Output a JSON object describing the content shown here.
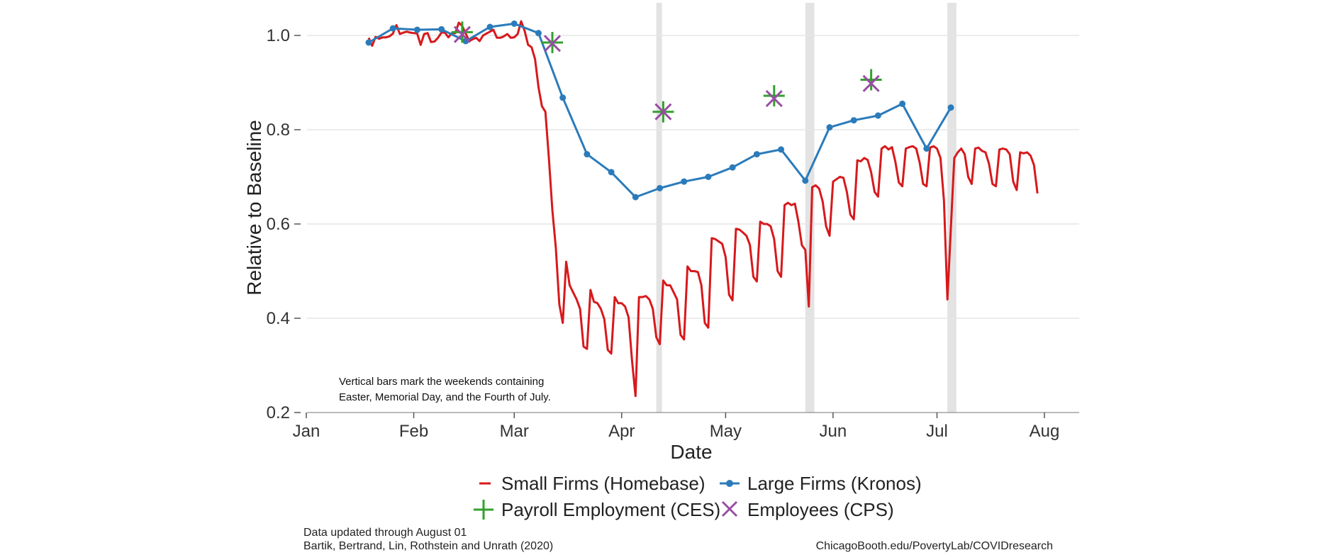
{
  "chart_data": {
    "type": "line",
    "xlabel": "Date",
    "ylabel": "Relative to Baseline",
    "x_domain": [
      1,
      214
    ],
    "ylim": [
      0.2,
      1.05
    ],
    "x_ticks": [
      {
        "day": 1,
        "label": "Jan"
      },
      {
        "day": 32,
        "label": "Feb"
      },
      {
        "day": 61,
        "label": "Mar"
      },
      {
        "day": 92,
        "label": "Apr"
      },
      {
        "day": 122,
        "label": "May"
      },
      {
        "day": 153,
        "label": "Jun"
      },
      {
        "day": 183,
        "label": "Jul"
      },
      {
        "day": 214,
        "label": "Aug"
      }
    ],
    "y_ticks": [
      {
        "value": 0.2,
        "label": "0.2"
      },
      {
        "value": 0.4,
        "label": "0.4"
      },
      {
        "value": 0.6,
        "label": "0.6"
      },
      {
        "value": 0.8,
        "label": "0.8"
      },
      {
        "value": 1.0,
        "label": "1.0"
      }
    ],
    "grid": true,
    "holiday_bars": [
      {
        "start_day": 102,
        "end_day": 103.6,
        "label": "Easter"
      },
      {
        "start_day": 145,
        "end_day": 147.6,
        "label": "Memorial Day"
      },
      {
        "start_day": 186,
        "end_day": 188.6,
        "label": "Fourth of July"
      }
    ],
    "note_lines": [
      "Vertical bars mark the weekends containing",
      "Easter, Memorial Day, and the Fourth of July."
    ],
    "series": [
      {
        "name": "Small Firms (Homebase)",
        "style": "line",
        "color": "#d7191c",
        "points": [
          [
            19,
            0.995
          ],
          [
            20,
            0.978
          ],
          [
            21,
            0.997
          ],
          [
            22,
            0.993
          ],
          [
            23,
            0.996
          ],
          [
            24,
            0.996
          ],
          [
            25,
            0.998
          ],
          [
            26,
            1.004
          ],
          [
            27,
            1.022
          ],
          [
            28,
            1.003
          ],
          [
            29,
            1.006
          ],
          [
            30,
            1.008
          ],
          [
            31,
            1.006
          ],
          [
            32,
            1.005
          ],
          [
            33,
            1.004
          ],
          [
            34,
            0.98
          ],
          [
            35,
            1.003
          ],
          [
            36,
            1.005
          ],
          [
            37,
            0.986
          ],
          [
            38,
            0.987
          ],
          [
            39,
            0.995
          ],
          [
            40,
            1.006
          ],
          [
            41,
            1.006
          ],
          [
            42,
            0.996
          ],
          [
            43,
            1.005
          ],
          [
            44,
            1.005
          ],
          [
            45,
            1.027
          ],
          [
            46,
            1.02
          ],
          [
            47,
            1.004
          ],
          [
            48,
            0.988
          ],
          [
            49,
            0.992
          ],
          [
            50,
            0.995
          ],
          [
            51,
            0.988
          ],
          [
            52,
            1.0
          ],
          [
            53,
            1.004
          ],
          [
            54,
            1.008
          ],
          [
            55,
            1.012
          ],
          [
            56,
            0.995
          ],
          [
            57,
            0.995
          ],
          [
            58,
            0.998
          ],
          [
            59,
            1.003
          ],
          [
            60,
            0.995
          ],
          [
            61,
            0.996
          ],
          [
            62,
            1.003
          ],
          [
            63,
            1.03
          ],
          [
            64,
            1.01
          ],
          [
            65,
            0.98
          ],
          [
            66,
            0.975
          ],
          [
            67,
            0.95
          ],
          [
            68,
            0.89
          ],
          [
            69,
            0.85
          ],
          [
            70,
            0.838
          ],
          [
            71,
            0.74
          ],
          [
            72,
            0.63
          ],
          [
            73,
            0.55
          ],
          [
            74,
            0.43
          ],
          [
            75,
            0.39
          ],
          [
            76,
            0.52
          ],
          [
            77,
            0.47
          ],
          [
            78,
            0.455
          ],
          [
            79,
            0.44
          ],
          [
            80,
            0.42
          ],
          [
            81,
            0.34
          ],
          [
            82,
            0.335
          ],
          [
            83,
            0.46
          ],
          [
            84,
            0.435
          ],
          [
            85,
            0.432
          ],
          [
            86,
            0.42
          ],
          [
            87,
            0.398
          ],
          [
            88,
            0.333
          ],
          [
            89,
            0.325
          ],
          [
            90,
            0.445
          ],
          [
            91,
            0.432
          ],
          [
            92,
            0.432
          ],
          [
            93,
            0.425
          ],
          [
            94,
            0.402
          ],
          [
            95,
            0.31
          ],
          [
            96,
            0.235
          ],
          [
            97,
            0.445
          ],
          [
            98,
            0.445
          ],
          [
            99,
            0.447
          ],
          [
            100,
            0.44
          ],
          [
            101,
            0.42
          ],
          [
            102,
            0.36
          ],
          [
            103,
            0.345
          ],
          [
            104,
            0.48
          ],
          [
            105,
            0.47
          ],
          [
            106,
            0.47
          ],
          [
            107,
            0.455
          ],
          [
            108,
            0.44
          ],
          [
            109,
            0.365
          ],
          [
            110,
            0.355
          ],
          [
            111,
            0.51
          ],
          [
            112,
            0.5
          ],
          [
            113,
            0.5
          ],
          [
            114,
            0.498
          ],
          [
            115,
            0.47
          ],
          [
            116,
            0.39
          ],
          [
            117,
            0.38
          ],
          [
            118,
            0.57
          ],
          [
            119,
            0.568
          ],
          [
            120,
            0.563
          ],
          [
            121,
            0.558
          ],
          [
            122,
            0.53
          ],
          [
            123,
            0.45
          ],
          [
            124,
            0.438
          ],
          [
            125,
            0.59
          ],
          [
            126,
            0.588
          ],
          [
            127,
            0.582
          ],
          [
            128,
            0.575
          ],
          [
            129,
            0.556
          ],
          [
            130,
            0.488
          ],
          [
            131,
            0.478
          ],
          [
            132,
            0.605
          ],
          [
            133,
            0.6
          ],
          [
            134,
            0.6
          ],
          [
            135,
            0.595
          ],
          [
            136,
            0.568
          ],
          [
            137,
            0.5
          ],
          [
            138,
            0.488
          ],
          [
            139,
            0.64
          ],
          [
            140,
            0.645
          ],
          [
            141,
            0.64
          ],
          [
            142,
            0.643
          ],
          [
            143,
            0.605
          ],
          [
            144,
            0.555
          ],
          [
            145,
            0.545
          ],
          [
            146,
            0.425
          ],
          [
            147,
            0.678
          ],
          [
            148,
            0.682
          ],
          [
            149,
            0.675
          ],
          [
            150,
            0.648
          ],
          [
            151,
            0.595
          ],
          [
            152,
            0.575
          ],
          [
            153,
            0.69
          ],
          [
            154,
            0.695
          ],
          [
            155,
            0.7
          ],
          [
            156,
            0.698
          ],
          [
            157,
            0.668
          ],
          [
            158,
            0.62
          ],
          [
            159,
            0.61
          ],
          [
            160,
            0.735
          ],
          [
            161,
            0.733
          ],
          [
            162,
            0.74
          ],
          [
            163,
            0.736
          ],
          [
            164,
            0.71
          ],
          [
            165,
            0.668
          ],
          [
            166,
            0.658
          ],
          [
            167,
            0.76
          ],
          [
            168,
            0.765
          ],
          [
            169,
            0.758
          ],
          [
            170,
            0.763
          ],
          [
            171,
            0.732
          ],
          [
            172,
            0.688
          ],
          [
            173,
            0.68
          ],
          [
            174,
            0.76
          ],
          [
            175,
            0.763
          ],
          [
            176,
            0.765
          ],
          [
            177,
            0.76
          ],
          [
            178,
            0.73
          ],
          [
            179,
            0.685
          ],
          [
            180,
            0.68
          ],
          [
            181,
            0.762
          ],
          [
            182,
            0.765
          ],
          [
            183,
            0.76
          ],
          [
            184,
            0.74
          ],
          [
            185,
            0.65
          ],
          [
            186,
            0.44
          ],
          [
            187,
            0.59
          ],
          [
            188,
            0.74
          ],
          [
            189,
            0.752
          ],
          [
            190,
            0.76
          ],
          [
            191,
            0.748
          ],
          [
            192,
            0.7
          ],
          [
            193,
            0.685
          ],
          [
            194,
            0.76
          ],
          [
            195,
            0.762
          ],
          [
            196,
            0.755
          ],
          [
            197,
            0.752
          ],
          [
            198,
            0.728
          ],
          [
            199,
            0.685
          ],
          [
            200,
            0.68
          ],
          [
            201,
            0.758
          ],
          [
            202,
            0.76
          ],
          [
            203,
            0.758
          ],
          [
            204,
            0.748
          ],
          [
            205,
            0.69
          ],
          [
            206,
            0.672
          ],
          [
            207,
            0.752
          ],
          [
            208,
            0.75
          ],
          [
            209,
            0.752
          ],
          [
            210,
            0.745
          ],
          [
            211,
            0.725
          ],
          [
            212,
            0.665
          ]
        ]
      },
      {
        "name": "Large Firms (Kronos)",
        "style": "line-points",
        "color": "#2b7bba",
        "points": [
          [
            19,
            0.985
          ],
          [
            26,
            1.015
          ],
          [
            33,
            1.012
          ],
          [
            40,
            1.013
          ],
          [
            47,
            0.988
          ],
          [
            54,
            1.018
          ],
          [
            61,
            1.025
          ],
          [
            68,
            1.005
          ],
          [
            75,
            0.868
          ],
          [
            82,
            0.748
          ],
          [
            89,
            0.71
          ],
          [
            96,
            0.657
          ],
          [
            103,
            0.676
          ],
          [
            110,
            0.69
          ],
          [
            117,
            0.7
          ],
          [
            124,
            0.72
          ],
          [
            131,
            0.748
          ],
          [
            138,
            0.758
          ],
          [
            145,
            0.692
          ],
          [
            152,
            0.805
          ],
          [
            159,
            0.82
          ],
          [
            166,
            0.83
          ],
          [
            173,
            0.855
          ],
          [
            180,
            0.76
          ],
          [
            187,
            0.847
          ]
        ]
      },
      {
        "name": "Payroll Employment (CES)",
        "style": "plus",
        "color": "#33a02c",
        "points": [
          [
            46,
            1.007
          ],
          [
            72,
            0.985
          ],
          [
            104,
            0.838
          ],
          [
            136,
            0.872
          ],
          [
            164,
            0.906
          ]
        ]
      },
      {
        "name": "Employees (CPS)",
        "style": "cross",
        "color": "#984ea3",
        "points": [
          [
            46,
            1.002
          ],
          [
            72,
            0.983
          ],
          [
            104,
            0.838
          ],
          [
            136,
            0.866
          ],
          [
            164,
            0.898
          ]
        ]
      }
    ],
    "legend": {
      "placement": "bottom",
      "items": [
        {
          "label": "Small Firms (Homebase)",
          "marker": "line",
          "color": "#d7191c"
        },
        {
          "label": "Large Firms (Kronos)",
          "marker": "line-point",
          "color": "#2b7bba"
        },
        {
          "label": "Payroll Employment (CES)",
          "marker": "plus",
          "color": "#33a02c"
        },
        {
          "label": "Employees (CPS)",
          "marker": "cross",
          "color": "#984ea3"
        }
      ]
    }
  },
  "footer": {
    "updated": "Data updated through August 01",
    "citation": "Bartik, Bertrand, Lin, Rothstein and Unrath (2020)",
    "url": "ChicagoBooth.edu/PovertyLab/COVIDresearch"
  }
}
